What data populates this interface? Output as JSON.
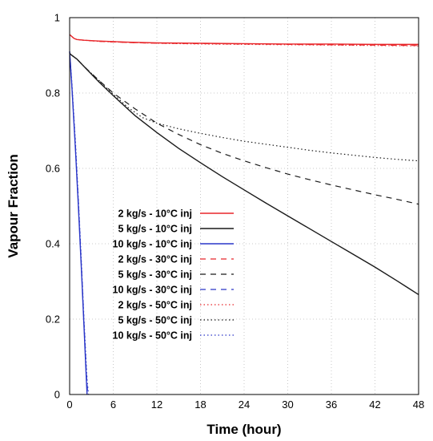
{
  "chart_data": {
    "type": "line",
    "xlabel": "Time (hour)",
    "ylabel": "Vapour Fraction",
    "xlim": [
      0,
      48
    ],
    "ylim": [
      0,
      1
    ],
    "xticks": [
      "0",
      "6",
      "12",
      "18",
      "24",
      "30",
      "36",
      "42",
      "48"
    ],
    "yticks": [
      "0",
      "0.2",
      "0.4",
      "0.6",
      "0.8",
      "1"
    ],
    "grid": true,
    "legend_position": "left-center",
    "colors": {
      "red": "#e8262a",
      "black": "#1a1a1a",
      "blue": "#2a36c8"
    },
    "series": [
      {
        "name": "2 kg/s - 10°C inj",
        "color": "red",
        "style": "solid",
        "x": [
          0,
          0.3,
          0.6,
          1,
          2,
          4,
          8,
          12,
          18,
          24,
          30,
          36,
          42,
          48
        ],
        "y": [
          0.955,
          0.95,
          0.945,
          0.942,
          0.94,
          0.938,
          0.935,
          0.933,
          0.932,
          0.931,
          0.93,
          0.93,
          0.929,
          0.929
        ]
      },
      {
        "name": "5 kg/s - 10°C inj",
        "color": "black",
        "style": "solid",
        "x": [
          0,
          0.3,
          1,
          2,
          3,
          4,
          6,
          9,
          12,
          15,
          18,
          21,
          24,
          27,
          30,
          33,
          36,
          39,
          42,
          45,
          48
        ],
        "y": [
          0.905,
          0.9,
          0.89,
          0.87,
          0.85,
          0.83,
          0.793,
          0.74,
          0.695,
          0.653,
          0.615,
          0.578,
          0.543,
          0.508,
          0.474,
          0.44,
          0.406,
          0.372,
          0.338,
          0.302,
          0.265
        ]
      },
      {
        "name": "10 kg/s - 10°C inj",
        "color": "blue",
        "style": "solid",
        "x": [
          0,
          0.3,
          0.8,
          1.2,
          1.6,
          2.0,
          2.3,
          2.4
        ],
        "y": [
          0.91,
          0.82,
          0.65,
          0.5,
          0.34,
          0.17,
          0.04,
          0
        ]
      },
      {
        "name": "2 kg/s - 30°C inj",
        "color": "red",
        "style": "dashed",
        "x": [
          0,
          0.3,
          0.6,
          1,
          2,
          4,
          8,
          12,
          18,
          24,
          30,
          36,
          42,
          48
        ],
        "y": [
          0.955,
          0.95,
          0.945,
          0.942,
          0.94,
          0.937,
          0.934,
          0.932,
          0.931,
          0.93,
          0.929,
          0.928,
          0.927,
          0.926
        ]
      },
      {
        "name": "5 kg/s - 30°C inj",
        "color": "black",
        "style": "dashed",
        "x": [
          0,
          0.3,
          1,
          2,
          3,
          4,
          6,
          9,
          12,
          15,
          18,
          21,
          24,
          27,
          30,
          33,
          36,
          39,
          42,
          45,
          48
        ],
        "y": [
          0.905,
          0.9,
          0.89,
          0.87,
          0.852,
          0.834,
          0.8,
          0.758,
          0.72,
          0.69,
          0.663,
          0.64,
          0.62,
          0.602,
          0.585,
          0.57,
          0.556,
          0.543,
          0.53,
          0.518,
          0.505
        ]
      },
      {
        "name": "10 kg/s - 30°C inj",
        "color": "blue",
        "style": "dashed",
        "x": [
          0,
          0.3,
          0.8,
          1.2,
          1.6,
          2.0,
          2.35,
          2.5
        ],
        "y": [
          0.91,
          0.82,
          0.66,
          0.51,
          0.35,
          0.18,
          0.04,
          0
        ]
      },
      {
        "name": "2 kg/s - 50°C inj",
        "color": "red",
        "style": "dotted",
        "x": [
          0,
          0.3,
          0.6,
          1,
          2,
          4,
          8,
          12,
          18,
          24,
          30,
          36,
          42,
          48
        ],
        "y": [
          0.955,
          0.95,
          0.945,
          0.942,
          0.94,
          0.937,
          0.934,
          0.932,
          0.93,
          0.929,
          0.928,
          0.927,
          0.926,
          0.925
        ]
      },
      {
        "name": "5 kg/s - 50°C inj",
        "color": "black",
        "style": "dotted",
        "x": [
          0,
          0.3,
          1,
          2,
          3,
          4,
          5,
          6,
          7,
          8,
          10,
          12,
          15,
          18,
          21,
          24,
          27,
          30,
          33,
          36,
          39,
          42,
          45,
          48
        ],
        "y": [
          0.905,
          0.9,
          0.89,
          0.87,
          0.852,
          0.834,
          0.815,
          0.797,
          0.78,
          0.762,
          0.735,
          0.72,
          0.705,
          0.693,
          0.682,
          0.672,
          0.664,
          0.656,
          0.648,
          0.641,
          0.635,
          0.629,
          0.624,
          0.62
        ]
      },
      {
        "name": "10 kg/s - 50°C inj",
        "color": "blue",
        "style": "dotted",
        "x": [
          0,
          0.3,
          0.8,
          1.2,
          1.6,
          2.0,
          2.4,
          2.6
        ],
        "y": [
          0.91,
          0.83,
          0.67,
          0.52,
          0.36,
          0.19,
          0.04,
          0
        ]
      }
    ]
  }
}
